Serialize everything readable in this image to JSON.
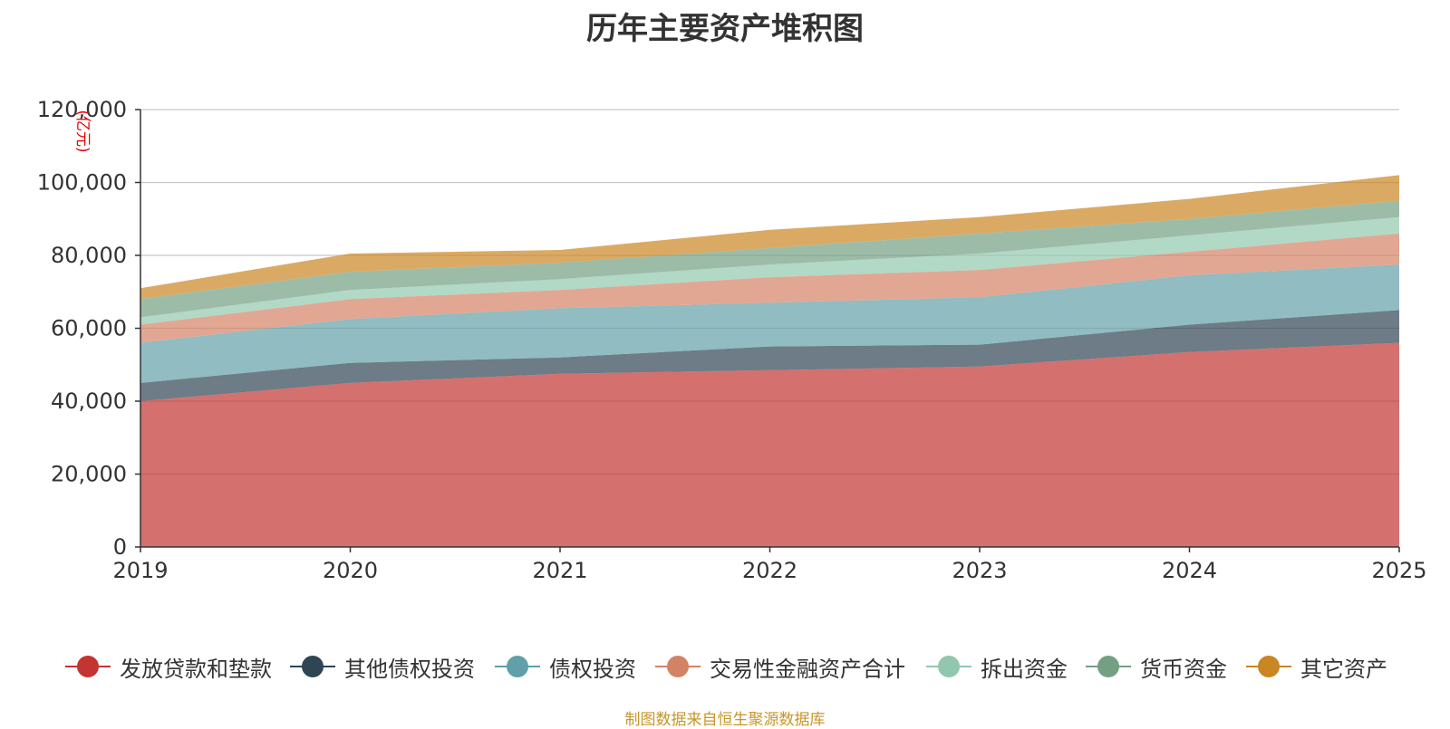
{
  "chart_data": {
    "type": "area",
    "stacked": true,
    "title": "历年主要资产堆积图",
    "ylabel": "(亿元)",
    "x": [
      "2019",
      "2020",
      "2021",
      "2022",
      "2023",
      "2024",
      "2025"
    ],
    "ylim": [
      0,
      120000
    ],
    "yticks": [
      "0",
      "20,000",
      "40,000",
      "60,000",
      "80,000",
      "100,000",
      "120,000"
    ],
    "grid": true,
    "legend_position": "bottom",
    "series": [
      {
        "name": "发放贷款和垫款",
        "color": "#c23531",
        "values": [
          40000,
          45000,
          47500,
          48500,
          49500,
          53500,
          56000
        ]
      },
      {
        "name": "其他债权投资",
        "color": "#2f4554",
        "values": [
          5000,
          5500,
          4500,
          6500,
          6000,
          7500,
          9000
        ]
      },
      {
        "name": "债权投资",
        "color": "#61a0a8",
        "values": [
          11000,
          12000,
          13500,
          12000,
          13000,
          13500,
          12500
        ]
      },
      {
        "name": "交易性金融资产合计",
        "color": "#d48265",
        "values": [
          5000,
          5500,
          5000,
          7000,
          7500,
          6500,
          8500
        ]
      },
      {
        "name": "拆出资金",
        "color": "#91c7ae",
        "values": [
          2000,
          2500,
          3000,
          3500,
          4500,
          4500,
          4500
        ]
      },
      {
        "name": "货币资金",
        "color": "#749f83",
        "values": [
          5000,
          5000,
          4500,
          4500,
          5500,
          4500,
          4500
        ]
      },
      {
        "name": "其它资产",
        "color": "#ca8622",
        "values": [
          3000,
          5000,
          3500,
          5000,
          4500,
          5500,
          7000
        ]
      }
    ]
  },
  "footer": "制图数据来自恒生聚源数据库"
}
